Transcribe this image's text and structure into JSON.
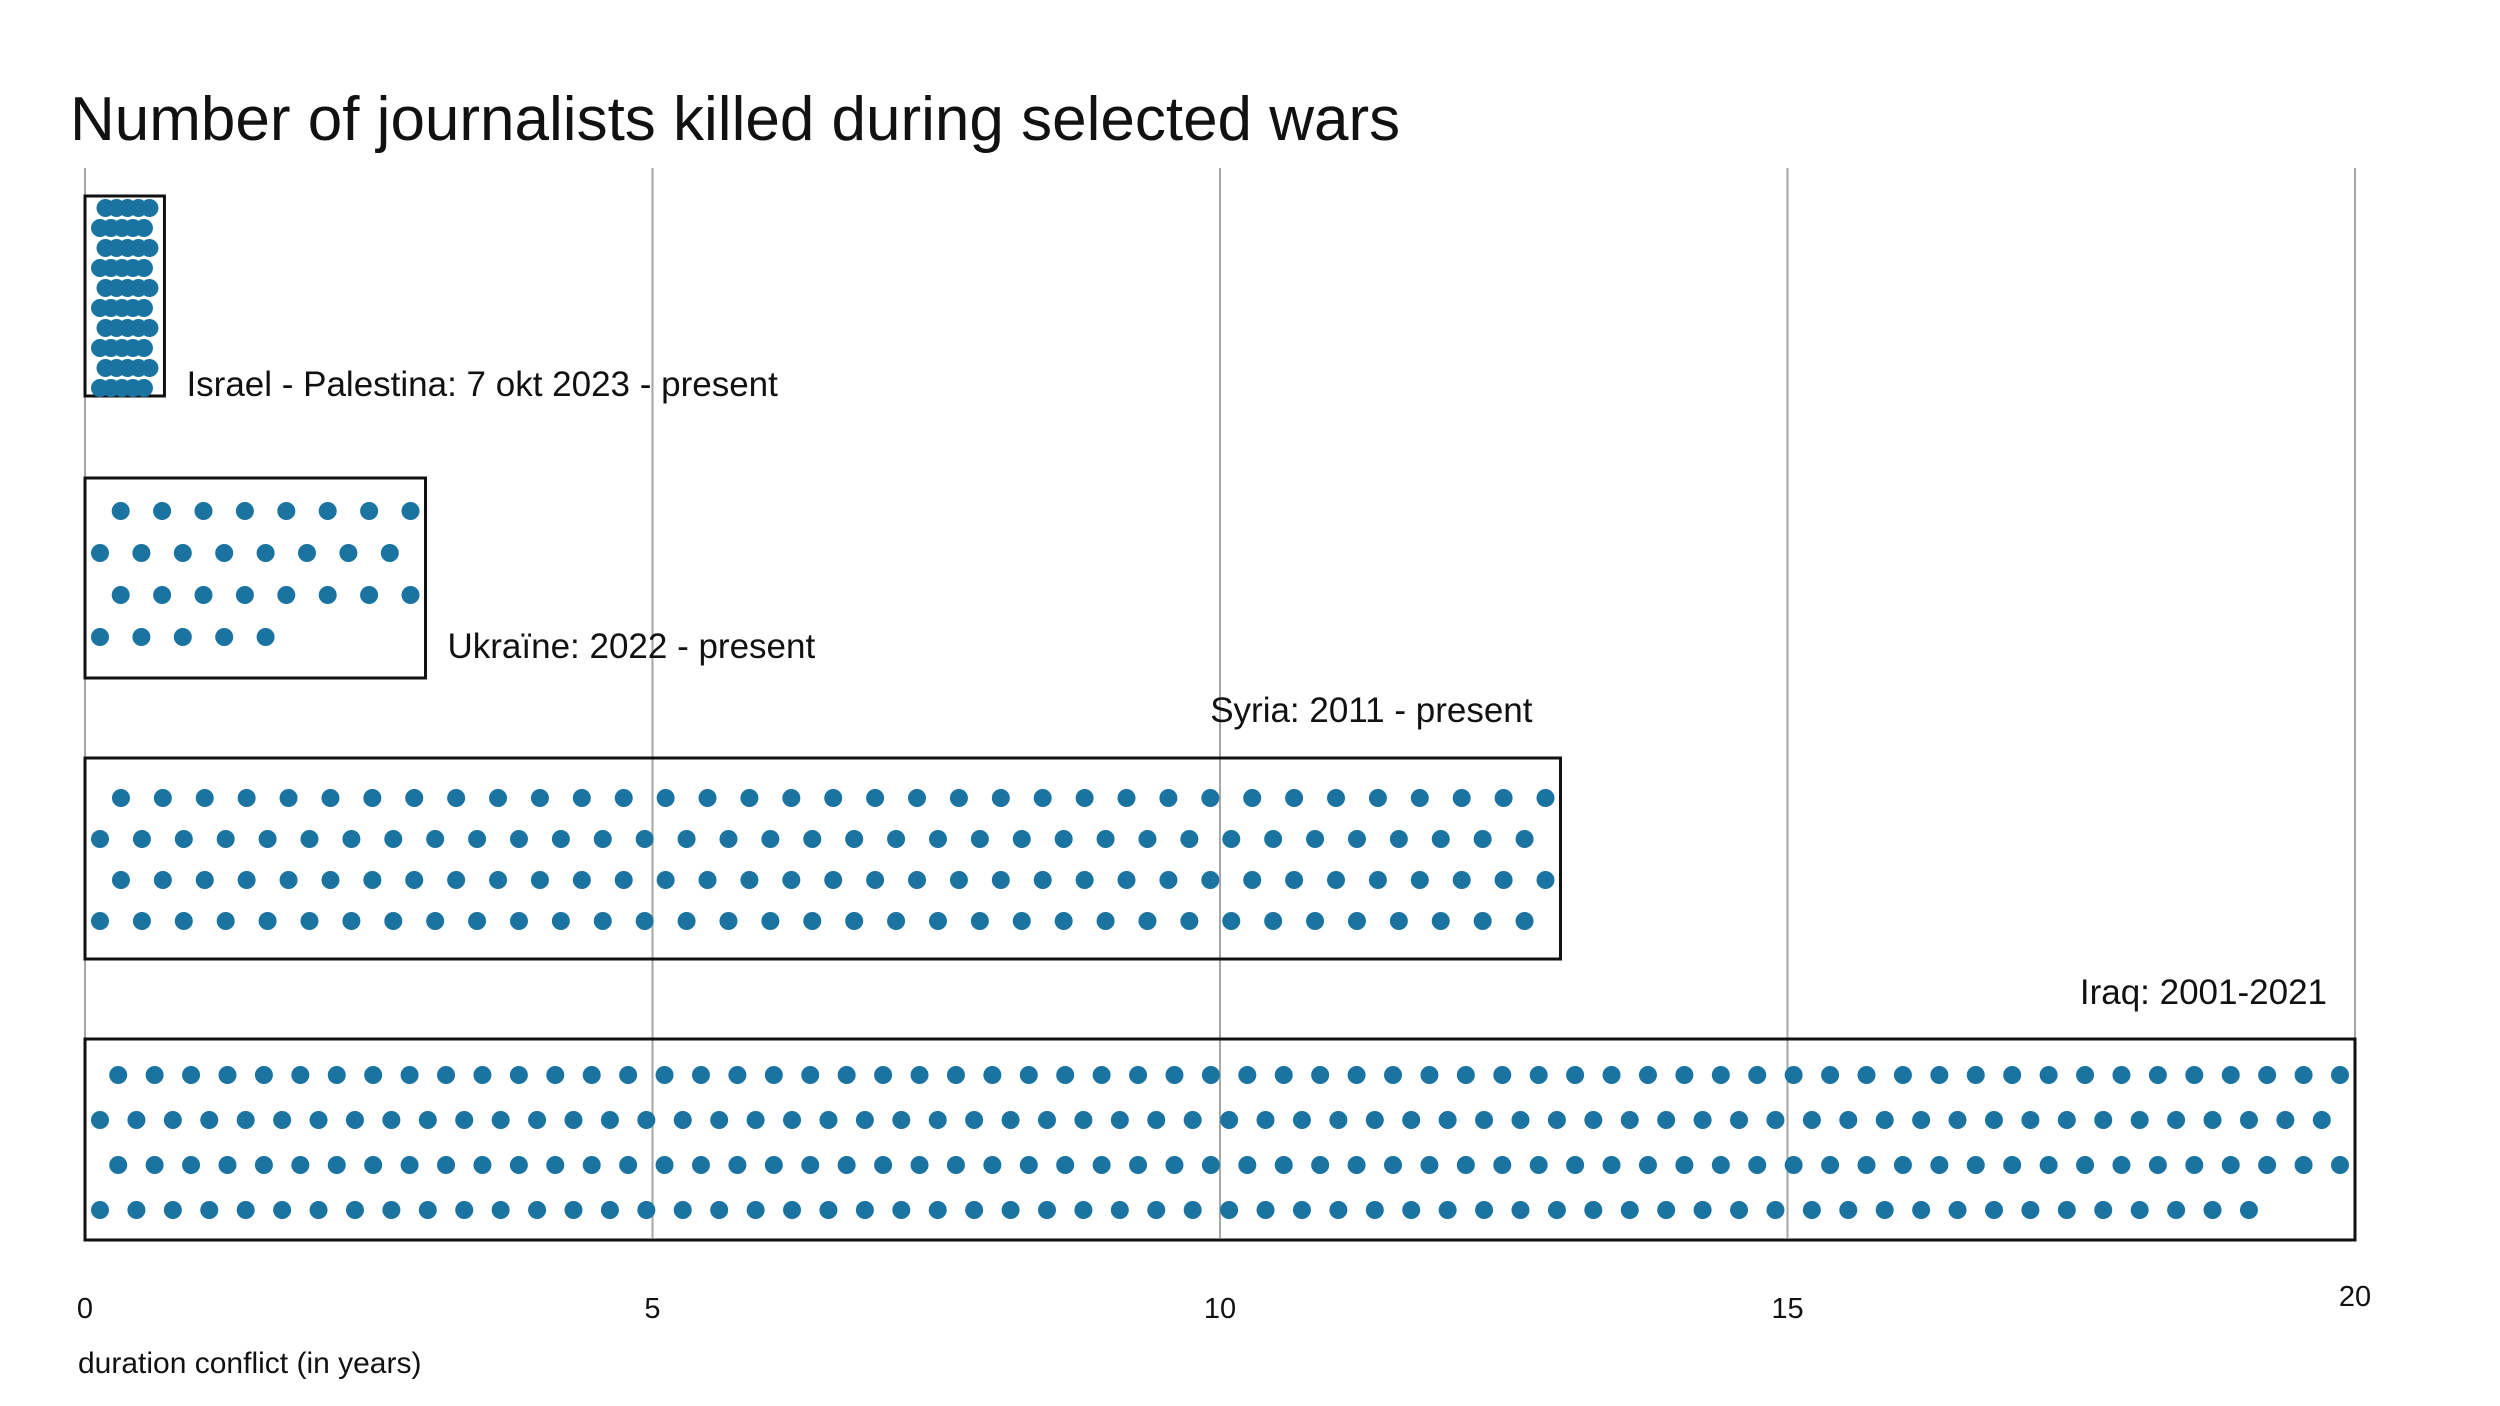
{
  "chart_data": {
    "type": "dot-matrix-bar",
    "title": "Number of journalists killed during selected wars",
    "xlabel": "duration conflict (in years)",
    "xlim": [
      0,
      20
    ],
    "xticks": [
      0,
      5,
      10,
      15,
      20
    ],
    "dot_color": "#1a73a0",
    "series": [
      {
        "label": "Israel - Palestina: 7 okt 2023 - present",
        "duration_years": 0.7,
        "journalists_killed": 50,
        "dot_rows": 10
      },
      {
        "label": "Ukraïne: 2022 - present",
        "duration_years": 3.0,
        "journalists_killed": 29,
        "dot_rows": 4
      },
      {
        "label": "Syria: 2011 - present",
        "duration_years": 13.0,
        "journalists_killed": 140,
        "dot_rows": 4
      },
      {
        "label": "Iraq: 2001-2021",
        "duration_years": 20.0,
        "journalists_killed": 246,
        "dot_rows": 4
      }
    ]
  }
}
